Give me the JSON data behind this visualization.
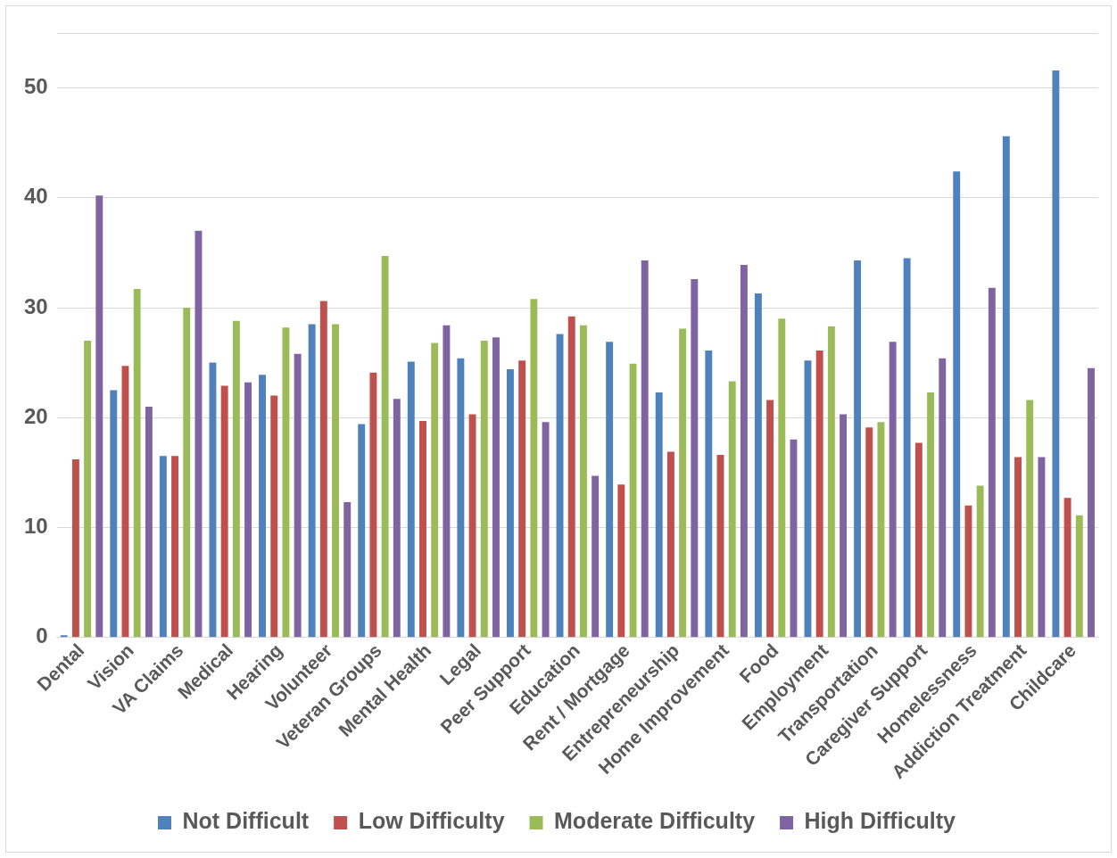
{
  "chart_data": {
    "type": "bar",
    "categories": [
      "Dental",
      "Vision",
      "VA Claims",
      "Medical",
      "Hearing",
      "Volunteer",
      "Veteran Groups",
      "Mental Health",
      "Legal",
      "Peer Support",
      "Education",
      "Rent / Mortgage",
      "Entrepreneurship",
      "Home Improvement",
      "Food",
      "Employment",
      "Transportation",
      "Caregiver Support",
      "Homelessness",
      "Addiction Treatment",
      "Childcare"
    ],
    "series": [
      {
        "name": "Not Difficult",
        "color": "#4f81bd",
        "values": [
          0.2,
          22.5,
          16.5,
          25.0,
          23.9,
          28.5,
          19.4,
          25.1,
          25.4,
          24.4,
          27.6,
          26.9,
          22.3,
          26.1,
          31.3,
          25.2,
          34.3,
          34.5,
          42.4,
          45.6,
          51.6
        ]
      },
      {
        "name": "Low Difficulty",
        "color": "#c0504d",
        "values": [
          16.2,
          24.7,
          16.5,
          22.9,
          22.0,
          30.6,
          24.1,
          19.7,
          20.3,
          25.2,
          29.2,
          13.9,
          16.9,
          16.6,
          21.6,
          26.1,
          19.1,
          17.7,
          12.0,
          16.4,
          12.7
        ]
      },
      {
        "name": "Moderate Difficulty",
        "color": "#9bbb59",
        "values": [
          27.0,
          31.7,
          30.0,
          28.8,
          28.2,
          28.5,
          34.7,
          26.8,
          27.0,
          30.8,
          28.4,
          24.9,
          28.1,
          23.3,
          29.0,
          28.3,
          19.6,
          22.3,
          13.8,
          21.6,
          11.1
        ]
      },
      {
        "name": "High Difficulty",
        "color": "#8064a2",
        "values": [
          40.2,
          21.0,
          37.0,
          23.2,
          25.8,
          12.3,
          21.7,
          28.4,
          27.3,
          19.6,
          14.7,
          34.3,
          32.6,
          33.9,
          18.0,
          20.3,
          26.9,
          25.4,
          31.8,
          16.4,
          24.5
        ]
      }
    ],
    "ylim": [
      0,
      55
    ],
    "yticks": [
      0,
      10,
      20,
      30,
      40,
      50,
      {
        "value": 55,
        "label": null
      }
    ],
    "grid": "y",
    "legend": "bottom"
  }
}
